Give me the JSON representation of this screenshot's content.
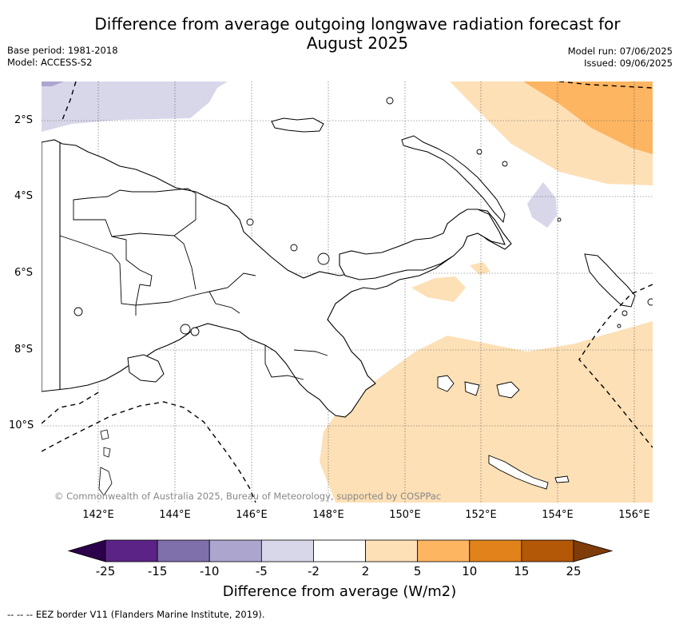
{
  "title_line1": "Difference from average outgoing longwave radiation forecast for",
  "title_line2": "August 2025",
  "meta_left": {
    "base_period": "Base period: 1981-2018",
    "model": "Model: ACCESS-S2"
  },
  "meta_right": {
    "model_run": "Model run: 07/06/2025",
    "issued": "Issued: 09/06/2025"
  },
  "lat_labels": [
    "2°S",
    "4°S",
    "6°S",
    "8°S",
    "10°S"
  ],
  "lon_labels": [
    "142°E",
    "144°E",
    "146°E",
    "148°E",
    "150°E",
    "152°E",
    "154°E",
    "156°E"
  ],
  "copyright": "© Commonwealth of Australia 2025, Bureau of Meteorology, supported by COSPPac",
  "colorbar": {
    "ticks": [
      "-25",
      "-15",
      "-10",
      "-5",
      "-2",
      "2",
      "5",
      "10",
      "15",
      "25"
    ],
    "colors": [
      "#5b2386",
      "#7f6fab",
      "#aca6cf",
      "#d8d7ea",
      "#ffffff",
      "#fde0b6",
      "#fdb561",
      "#e2821a",
      "#b35806"
    ],
    "under_color": "#2d004b",
    "over_color": "#7f3b08",
    "label": "Difference from average (W/m2)"
  },
  "footnote": "--  --  -- EEZ border V11 (Flanders Marine Institute, 2019)."
}
